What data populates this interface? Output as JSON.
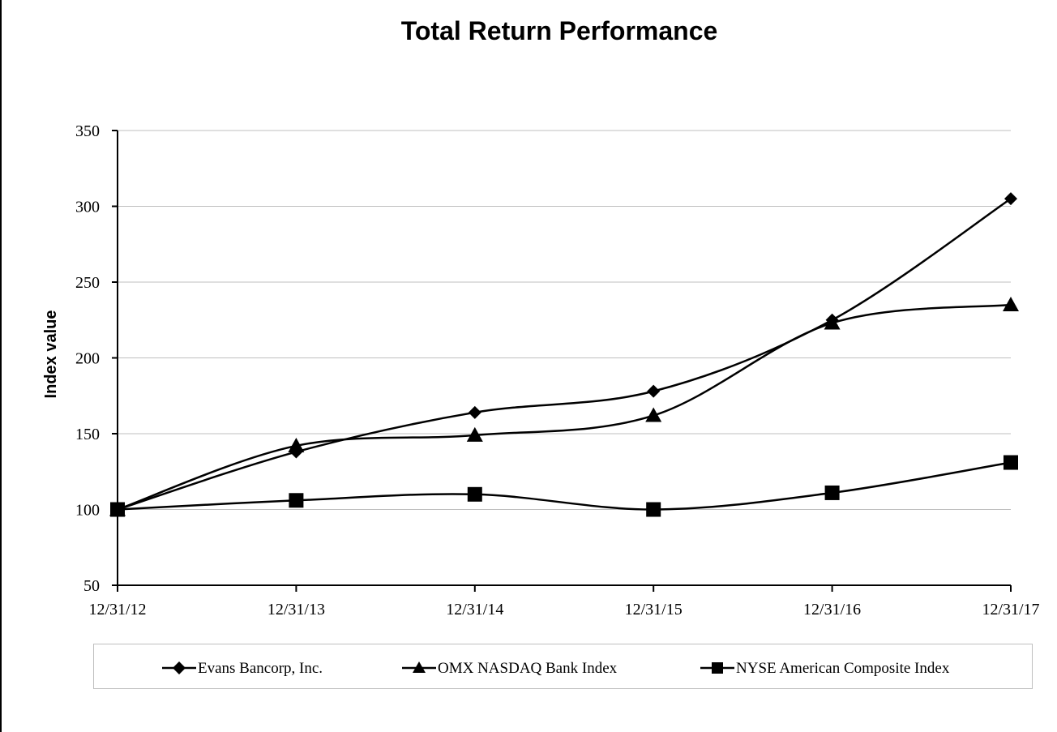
{
  "chart_data": {
    "type": "line",
    "title": "Total Return Performance",
    "xlabel": "",
    "ylabel": "Index  value",
    "categories": [
      "12/31/12",
      "12/31/13",
      "12/31/14",
      "12/31/15",
      "12/31/16",
      "12/31/17"
    ],
    "ylim": [
      50,
      350
    ],
    "yticks": [
      50,
      100,
      150,
      200,
      250,
      300,
      350
    ],
    "grid": true,
    "legend_position": "bottom",
    "series": [
      {
        "name": "Evans Bancorp, Inc.",
        "marker": "diamond",
        "values": [
          100,
          138,
          164,
          178,
          225,
          305
        ]
      },
      {
        "name": "OMX NASDAQ Bank Index",
        "marker": "triangle",
        "values": [
          100,
          142,
          149,
          162,
          223,
          235
        ]
      },
      {
        "name": "NYSE American Composite Index",
        "marker": "square",
        "values": [
          100,
          106,
          110,
          100,
          111,
          131
        ]
      }
    ],
    "colors": {
      "line": "#000000",
      "grid": "#bfbfbf"
    }
  }
}
